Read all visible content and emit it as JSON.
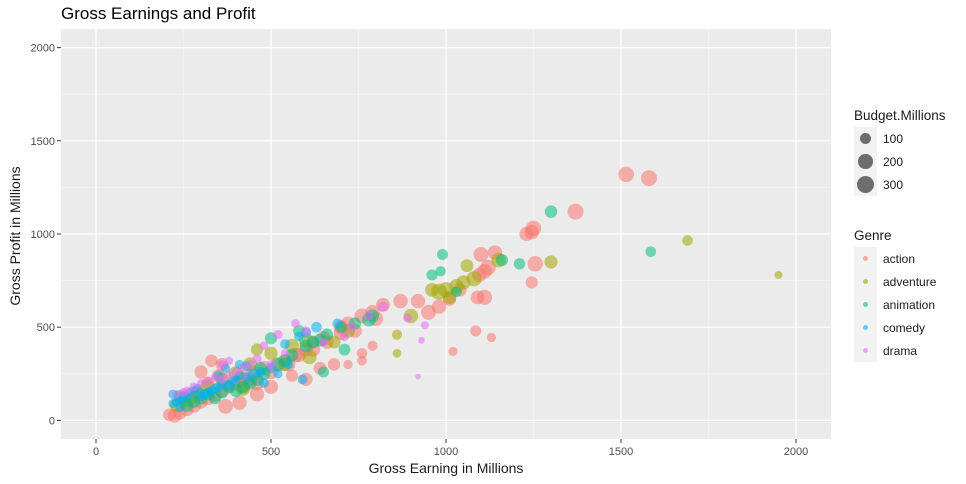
{
  "chart_data": {
    "type": "scatter",
    "title": "Gross Earnings and Profit",
    "xlabel": "Gross Earning in Millions",
    "ylabel": "Gross Profit in Millions",
    "xlim": [
      -100,
      2100
    ],
    "ylim": [
      -100,
      2100
    ],
    "xticks": [
      0,
      500,
      1000,
      1500,
      2000
    ],
    "yticks": [
      0,
      500,
      1000,
      1500,
      2000
    ],
    "grid": true,
    "legend_placement": "right",
    "size_legend": {
      "title": "Budget.Millions",
      "entries": [
        {
          "label": "100",
          "value": 100
        },
        {
          "label": "200",
          "value": 200
        },
        {
          "label": "300",
          "value": 300
        }
      ]
    },
    "color_legend": {
      "title": "Genre",
      "entries": [
        {
          "label": "action",
          "color": "#F8766D"
        },
        {
          "label": "adventure",
          "color": "#A3A500"
        },
        {
          "label": "animation",
          "color": "#00BF7D"
        },
        {
          "label": "comedy",
          "color": "#00B0F6"
        },
        {
          "label": "drama",
          "color": "#E76BF3"
        }
      ]
    },
    "series": [
      {
        "name": "action",
        "points": [
          [
            1515,
            1320,
            240
          ],
          [
            1580,
            1300,
            260
          ],
          [
            1370,
            1120,
            260
          ],
          [
            1250,
            1030,
            240
          ],
          [
            1245,
            1010,
            200
          ],
          [
            1230,
            1000,
            190
          ],
          [
            1255,
            840,
            240
          ],
          [
            1140,
            900,
            200
          ],
          [
            1100,
            890,
            220
          ],
          [
            1120,
            820,
            240
          ],
          [
            1110,
            800,
            210
          ],
          [
            1095,
            780,
            200
          ],
          [
            1110,
            660,
            230
          ],
          [
            1090,
            660,
            180
          ],
          [
            1245,
            740,
            130
          ],
          [
            1040,
            700,
            160
          ],
          [
            1010,
            650,
            160
          ],
          [
            980,
            610,
            200
          ],
          [
            950,
            580,
            220
          ],
          [
            920,
            640,
            200
          ],
          [
            870,
            640,
            200
          ],
          [
            820,
            620,
            180
          ],
          [
            790,
            580,
            200
          ],
          [
            760,
            560,
            220
          ],
          [
            800,
            545,
            200
          ],
          [
            720,
            520,
            180
          ],
          [
            700,
            500,
            200
          ],
          [
            650,
            440,
            200
          ],
          [
            620,
            420,
            160
          ],
          [
            600,
            380,
            180
          ],
          [
            570,
            350,
            200
          ],
          [
            540,
            320,
            180
          ],
          [
            520,
            300,
            220
          ],
          [
            480,
            280,
            200
          ],
          [
            450,
            250,
            220
          ],
          [
            420,
            220,
            240
          ],
          [
            400,
            200,
            200
          ],
          [
            380,
            180,
            180
          ],
          [
            360,
            160,
            200
          ],
          [
            340,
            140,
            220
          ],
          [
            320,
            120,
            200
          ],
          [
            300,
            100,
            180
          ],
          [
            280,
            80,
            200
          ],
          [
            260,
            60,
            180
          ],
          [
            240,
            40,
            160
          ],
          [
            225,
            25,
            180
          ],
          [
            210,
            30,
            150
          ],
          [
            300,
            260,
            160
          ],
          [
            330,
            320,
            140
          ],
          [
            360,
            300,
            150
          ],
          [
            420,
            180,
            200
          ],
          [
            440,
            220,
            180
          ],
          [
            460,
            200,
            200
          ],
          [
            500,
            260,
            200
          ],
          [
            550,
            300,
            180
          ],
          [
            580,
            350,
            180
          ],
          [
            620,
            380,
            200
          ],
          [
            660,
            420,
            170
          ],
          [
            700,
            470,
            200
          ],
          [
            740,
            480,
            180
          ],
          [
            760,
            360,
            90
          ],
          [
            790,
            400,
            80
          ],
          [
            720,
            300,
            60
          ],
          [
            760,
            320,
            70
          ],
          [
            1020,
            370,
            60
          ],
          [
            1130,
            445,
            60
          ],
          [
            1085,
            480,
            100
          ],
          [
            370,
            75,
            210
          ],
          [
            410,
            95,
            200
          ],
          [
            260,
            110,
            180
          ],
          [
            290,
            150,
            170
          ],
          [
            560,
            240,
            130
          ],
          [
            600,
            220,
            160
          ],
          [
            640,
            280,
            150
          ],
          [
            680,
            300,
            140
          ],
          [
            460,
            140,
            200
          ],
          [
            320,
            200,
            160
          ],
          [
            250,
            120,
            180
          ],
          [
            350,
            240,
            150
          ],
          [
            500,
            180,
            190
          ]
        ]
      },
      {
        "name": "adventure",
        "points": [
          [
            1950,
            780,
            40
          ],
          [
            1690,
            965,
            90
          ],
          [
            1300,
            850,
            160
          ],
          [
            1150,
            860,
            200
          ],
          [
            1060,
            830,
            150
          ],
          [
            1080,
            760,
            230
          ],
          [
            1050,
            740,
            200
          ],
          [
            1030,
            720,
            200
          ],
          [
            1000,
            700,
            240
          ],
          [
            980,
            690,
            260
          ],
          [
            960,
            700,
            180
          ],
          [
            1010,
            660,
            170
          ],
          [
            900,
            560,
            200
          ],
          [
            860,
            460,
            80
          ],
          [
            860,
            360,
            50
          ],
          [
            720,
            480,
            180
          ],
          [
            680,
            420,
            150
          ],
          [
            600,
            430,
            200
          ],
          [
            560,
            400,
            180
          ],
          [
            500,
            360,
            160
          ],
          [
            460,
            380,
            130
          ],
          [
            440,
            300,
            190
          ],
          [
            400,
            250,
            220
          ],
          [
            360,
            220,
            180
          ],
          [
            320,
            180,
            170
          ],
          [
            290,
            150,
            140
          ],
          [
            270,
            120,
            150
          ],
          [
            250,
            100,
            130
          ],
          [
            230,
            80,
            160
          ],
          [
            610,
            340,
            200
          ],
          [
            540,
            300,
            170
          ],
          [
            420,
            170,
            200
          ]
        ]
      },
      {
        "name": "animation",
        "points": [
          [
            1300,
            1120,
            140
          ],
          [
            1585,
            905,
            90
          ],
          [
            1160,
            860,
            130
          ],
          [
            1210,
            840,
            110
          ],
          [
            990,
            890,
            100
          ],
          [
            960,
            780,
            100
          ],
          [
            985,
            800,
            80
          ],
          [
            1030,
            690,
            90
          ],
          [
            790,
            560,
            160
          ],
          [
            780,
            540,
            180
          ],
          [
            740,
            520,
            130
          ],
          [
            700,
            500,
            110
          ],
          [
            660,
            460,
            130
          ],
          [
            640,
            430,
            150
          ],
          [
            620,
            420,
            130
          ],
          [
            600,
            400,
            150
          ],
          [
            560,
            350,
            140
          ],
          [
            540,
            320,
            130
          ],
          [
            520,
            300,
            150
          ],
          [
            480,
            250,
            140
          ],
          [
            460,
            220,
            160
          ],
          [
            440,
            200,
            150
          ],
          [
            420,
            180,
            130
          ],
          [
            400,
            160,
            150
          ],
          [
            380,
            180,
            120
          ],
          [
            360,
            150,
            130
          ],
          [
            340,
            120,
            140
          ],
          [
            320,
            140,
            130
          ],
          [
            300,
            120,
            150
          ],
          [
            280,
            100,
            140
          ],
          [
            260,
            80,
            150
          ],
          [
            240,
            130,
            130
          ],
          [
            650,
            260,
            100
          ],
          [
            710,
            380,
            120
          ],
          [
            580,
            480,
            120
          ],
          [
            500,
            440,
            130
          ],
          [
            470,
            280,
            140
          ]
        ]
      },
      {
        "name": "comedy",
        "points": [
          [
            690,
            520,
            80
          ],
          [
            630,
            500,
            90
          ],
          [
            600,
            470,
            80
          ],
          [
            580,
            450,
            70
          ],
          [
            540,
            410,
            70
          ],
          [
            550,
            300,
            60
          ],
          [
            590,
            220,
            70
          ],
          [
            500,
            280,
            80
          ],
          [
            470,
            260,
            70
          ],
          [
            450,
            250,
            90
          ],
          [
            430,
            230,
            80
          ],
          [
            410,
            240,
            70
          ],
          [
            400,
            220,
            60
          ],
          [
            390,
            210,
            70
          ],
          [
            380,
            190,
            80
          ],
          [
            360,
            200,
            60
          ],
          [
            350,
            180,
            70
          ],
          [
            340,
            170,
            80
          ],
          [
            330,
            160,
            60
          ],
          [
            320,
            150,
            70
          ],
          [
            310,
            140,
            80
          ],
          [
            300,
            130,
            60
          ],
          [
            290,
            170,
            70
          ],
          [
            280,
            160,
            60
          ],
          [
            270,
            150,
            70
          ],
          [
            260,
            130,
            60
          ],
          [
            250,
            120,
            70
          ],
          [
            240,
            110,
            60
          ],
          [
            230,
            100,
            70
          ],
          [
            220,
            90,
            60
          ],
          [
            220,
            140,
            60
          ],
          [
            240,
            70,
            60
          ],
          [
            350,
            240,
            70
          ],
          [
            370,
            280,
            60
          ],
          [
            410,
            300,
            60
          ],
          [
            430,
            290,
            70
          ],
          [
            480,
            200,
            70
          ],
          [
            520,
            250,
            60
          ]
        ]
      },
      {
        "name": "drama",
        "points": [
          [
            940,
            510,
            40
          ],
          [
            930,
            430,
            20
          ],
          [
            920,
            235,
            10
          ],
          [
            890,
            550,
            50
          ],
          [
            820,
            610,
            80
          ],
          [
            780,
            560,
            60
          ],
          [
            730,
            500,
            70
          ],
          [
            710,
            450,
            60
          ],
          [
            600,
            480,
            60
          ],
          [
            570,
            520,
            50
          ],
          [
            520,
            460,
            60
          ],
          [
            480,
            400,
            50
          ],
          [
            460,
            330,
            60
          ],
          [
            440,
            300,
            50
          ],
          [
            420,
            280,
            60
          ],
          [
            400,
            260,
            50
          ],
          [
            380,
            240,
            60
          ],
          [
            360,
            220,
            50
          ],
          [
            340,
            230,
            40
          ],
          [
            320,
            210,
            50
          ],
          [
            300,
            200,
            40
          ],
          [
            280,
            180,
            50
          ],
          [
            260,
            160,
            40
          ],
          [
            250,
            150,
            50
          ],
          [
            230,
            140,
            40
          ],
          [
            360,
            300,
            50
          ],
          [
            380,
            320,
            40
          ],
          [
            500,
            300,
            50
          ],
          [
            540,
            360,
            40
          ],
          [
            650,
            420,
            50
          ]
        ]
      }
    ]
  }
}
